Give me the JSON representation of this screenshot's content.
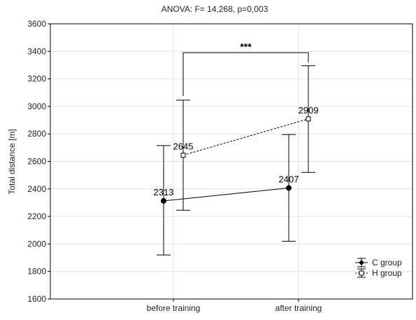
{
  "chart_data": {
    "type": "line",
    "title": "ANOVA: F= 14,268, p=0,003",
    "xlabel": "",
    "ylabel": "Total distance [m]",
    "categories": [
      "before training",
      "after training"
    ],
    "ylim": [
      1600,
      3600
    ],
    "yticks": [
      1600,
      1800,
      2000,
      2200,
      2400,
      2600,
      2800,
      3000,
      3200,
      3400,
      3600
    ],
    "grid": true,
    "legend_position": "bottom-right",
    "significance": {
      "label": "***",
      "between": "H group",
      "from": "before training",
      "to": "after training",
      "y": 3390
    },
    "series": [
      {
        "name": "C group",
        "marker": "filled-circle",
        "line_style": "solid",
        "color": "#000000",
        "values": [
          2313,
          2407
        ],
        "labels": [
          "2313",
          "2407"
        ],
        "error_low": [
          1920,
          2020
        ],
        "error_high": [
          2715,
          2795
        ]
      },
      {
        "name": "H group",
        "marker": "open-square",
        "line_style": "dashed",
        "color": "#000000",
        "values": [
          2645,
          2909
        ],
        "labels": [
          "2645",
          "2909"
        ],
        "error_low": [
          2245,
          2520
        ],
        "error_high": [
          3045,
          3295
        ]
      }
    ]
  }
}
